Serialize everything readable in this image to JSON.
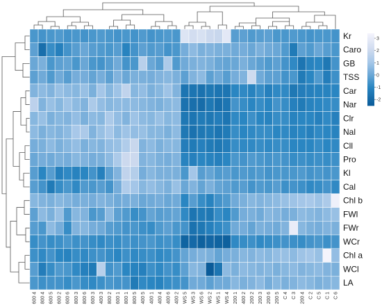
{
  "chart_data": {
    "type": "heatmap",
    "title": "",
    "xlabel": "",
    "ylabel": "",
    "rows": [
      "Kr",
      "Caro",
      "GB",
      "TSS",
      "Car",
      "Nar",
      "Clr",
      "Nal",
      "Cll",
      "Pro",
      "Kl",
      "Cal",
      "Chl b",
      "FWl",
      "FWr",
      "WCr",
      "Chl a",
      "WCl",
      "LA"
    ],
    "columns": [
      "600 4",
      "800 4",
      "600 5",
      "600 2",
      "600 6",
      "800 3",
      "800 6",
      "600 3",
      "400 3",
      "800 2",
      "600 1",
      "800 1",
      "800 5",
      "400 5",
      "400 1",
      "400 4",
      "400 6",
      "400 2",
      "WS 5",
      "WS 3",
      "WS 6",
      "WS 2",
      "WS 1",
      "WS 4",
      "200 1",
      "400 2",
      "200 2",
      "200 3",
      "200 6",
      "200 5",
      "C 4",
      "C 3",
      "200 4",
      "C 2",
      "C 5",
      "C 1",
      "C 6"
    ],
    "color_scale": {
      "stops": [
        {
          "value": -2.5,
          "color": "#0a5b99"
        },
        {
          "value": -1,
          "color": "#2a86c2"
        },
        {
          "value": 0,
          "color": "#6aa7d6"
        },
        {
          "value": 1,
          "color": "#a4c6e8"
        },
        {
          "value": 2,
          "color": "#ccd9ee"
        },
        {
          "value": 3.4,
          "color": "#f4f4fc"
        }
      ],
      "ticks": [
        3,
        2,
        1,
        0,
        -1,
        -2
      ]
    },
    "matrix": [
      [
        -0.5,
        -0.6,
        -0.5,
        -0.4,
        -0.6,
        -0.5,
        -0.6,
        -0.5,
        -0.4,
        -0.5,
        -0.6,
        -0.5,
        -0.6,
        -0.4,
        -0.6,
        -0.5,
        -0.4,
        -0.5,
        2.6,
        2.2,
        2.4,
        2.0,
        1.9,
        2.8,
        -0.3,
        -0.2,
        -0.4,
        -0.3,
        -0.2,
        -0.5,
        -0.5,
        -0.4,
        -0.5,
        -0.6,
        -0.5,
        -0.5,
        -0.6
      ],
      [
        -0.2,
        -1.8,
        -0.8,
        -1.2,
        -0.6,
        -0.3,
        0.0,
        -0.3,
        -0.4,
        -0.5,
        -0.3,
        -1.1,
        -0.6,
        -0.2,
        -0.4,
        -0.3,
        -0.6,
        -0.5,
        0.2,
        0.6,
        0.3,
        0.4,
        0.3,
        0.3,
        0.1,
        0.2,
        0.0,
        0.3,
        0.1,
        0.0,
        -0.4,
        -1.4,
        -0.2,
        -0.4,
        0.0,
        -0.3,
        -0.5
      ],
      [
        0.0,
        0.3,
        -0.5,
        -0.2,
        -0.1,
        -0.5,
        0.0,
        -0.5,
        -0.6,
        -0.3,
        0.1,
        -0.6,
        -0.5,
        1.5,
        0.0,
        -0.3,
        1.2,
        -0.4,
        0.1,
        0.3,
        0.4,
        0.3,
        0.0,
        -0.1,
        0.0,
        0.3,
        0.0,
        -0.2,
        -0.4,
        -0.2,
        -0.6,
        -0.9,
        -1.6,
        -1.1,
        -1.0,
        -1.5,
        -0.6
      ],
      [
        -0.2,
        0.1,
        -0.4,
        0.1,
        -0.3,
        0.2,
        0.2,
        -0.1,
        0.2,
        -0.2,
        0.4,
        0.0,
        0.3,
        0.3,
        0.2,
        0.4,
        0.5,
        0.3,
        -0.2,
        0.4,
        0.6,
        -0.2,
        0.1,
        -0.3,
        0.2,
        0.4,
        2.1,
        0.1,
        -0.2,
        -0.2,
        -0.6,
        -0.5,
        -1.4,
        -1.0,
        -0.4,
        -1.3,
        -0.7
      ],
      [
        0.4,
        0.6,
        0.4,
        0.8,
        0.6,
        0.5,
        0.8,
        0.3,
        1.0,
        0.5,
        0.9,
        1.7,
        0.5,
        0.7,
        0.3,
        0.5,
        0.9,
        0.4,
        -1.6,
        -1.6,
        -1.7,
        -1.5,
        -1.6,
        -1.6,
        -1.0,
        -0.9,
        -1.1,
        -0.8,
        -1.2,
        -0.9,
        -0.9,
        -1.5,
        -1.3,
        -1.2,
        -1.1,
        -1.1,
        -1.0
      ],
      [
        1.6,
        0.4,
        0.8,
        0.5,
        0.9,
        0.6,
        0.4,
        1.2,
        0.7,
        0.5,
        0.6,
        0.6,
        0.6,
        0.5,
        0.4,
        0.3,
        0.5,
        0.6,
        -1.7,
        -1.8,
        -1.9,
        -1.5,
        -1.8,
        -1.6,
        -0.6,
        -0.8,
        -1.0,
        -0.8,
        -1.0,
        -0.6,
        -0.8,
        -1.2,
        -1.4,
        -1.1,
        -1.0,
        -0.9,
        -0.8
      ],
      [
        0.5,
        0.8,
        0.3,
        0.5,
        0.4,
        0.7,
        0.3,
        0.6,
        0.5,
        1.2,
        0.7,
        0.4,
        0.9,
        0.6,
        0.5,
        0.8,
        0.5,
        0.6,
        -1.5,
        -1.6,
        -1.4,
        -1.5,
        -1.3,
        -1.6,
        -0.9,
        -1.0,
        -0.7,
        -1.0,
        -1.1,
        -0.8,
        -0.8,
        -1.1,
        -1.0,
        -1.0,
        -1.2,
        -0.9,
        -1.2
      ],
      [
        0.6,
        0.3,
        0.5,
        0.4,
        0.6,
        1.1,
        1.2,
        0.4,
        0.8,
        1.1,
        0.6,
        0.9,
        0.7,
        0.8,
        0.5,
        0.5,
        0.3,
        0.6,
        -1.5,
        -1.7,
        -1.5,
        -1.4,
        -1.6,
        -1.4,
        -0.8,
        -1.0,
        -0.9,
        -0.8,
        -0.8,
        -1.0,
        -0.9,
        -1.1,
        -1.0,
        -1.2,
        -0.9,
        -1.0,
        -1.1
      ],
      [
        0.2,
        0.3,
        0.6,
        0.3,
        0.5,
        0.7,
        0.3,
        0.5,
        0.4,
        0.7,
        0.8,
        1.3,
        1.9,
        0.4,
        0.6,
        0.3,
        0.5,
        0.5,
        -1.3,
        -1.4,
        -1.2,
        -1.4,
        -1.5,
        -1.3,
        -0.8,
        -0.9,
        -0.9,
        -0.8,
        -0.9,
        -0.8,
        -0.8,
        -1.0,
        -1.0,
        -1.0,
        -0.8,
        -1.0,
        -0.9
      ],
      [
        0.0,
        0.2,
        0.1,
        0.3,
        0.2,
        0.5,
        0.4,
        0.2,
        0.3,
        0.6,
        1.2,
        2.0,
        2.0,
        0.4,
        0.5,
        0.3,
        0.2,
        0.4,
        -1.1,
        -1.2,
        -1.0,
        -1.1,
        -1.2,
        -1.0,
        -0.5,
        -0.6,
        -0.4,
        -0.5,
        -0.6,
        -0.5,
        -0.6,
        -0.8,
        -0.7,
        -0.8,
        -0.7,
        -0.8,
        -0.7
      ],
      [
        -0.3,
        -1.0,
        -0.3,
        -1.2,
        -0.9,
        -1.1,
        -1.0,
        -0.6,
        -1.2,
        -0.2,
        0.4,
        1.7,
        1.4,
        0.2,
        0.5,
        0.3,
        0.3,
        0.3,
        -0.5,
        1.0,
        -0.3,
        -0.1,
        -0.4,
        -0.3,
        -0.5,
        -0.4,
        -0.5,
        -0.4,
        -0.6,
        -0.5,
        -0.5,
        -0.5,
        -0.4,
        -0.6,
        -0.5,
        -0.6,
        -0.5
      ],
      [
        -0.3,
        -0.6,
        -1.4,
        -0.8,
        -0.5,
        -0.9,
        -0.4,
        -0.5,
        -0.3,
        -0.6,
        0.2,
        1.3,
        1.0,
        0.5,
        0.7,
        0.5,
        0.3,
        0.8,
        0.0,
        0.4,
        -0.1,
        0.3,
        -0.1,
        -0.2,
        -0.4,
        -0.3,
        -0.6,
        -0.4,
        -0.5,
        -0.3,
        -0.7,
        -0.6,
        -0.7,
        -0.9,
        -0.8,
        -0.6,
        -0.9
      ],
      [
        0.5,
        0.4,
        0.3,
        0.5,
        0.4,
        0.2,
        0.3,
        0.2,
        0.4,
        0.3,
        0.1,
        0.2,
        0.3,
        0.0,
        0.1,
        0.2,
        0.0,
        0.1,
        -1.0,
        -0.3,
        -0.8,
        -1.1,
        -0.6,
        -0.4,
        0.1,
        0.3,
        0.5,
        0.4,
        0.5,
        0.6,
        0.8,
        0.9,
        1.0,
        1.1,
        0.9,
        1.2,
        3.2
      ],
      [
        -0.2,
        0.6,
        0.3,
        0.8,
        -0.4,
        0.5,
        0.4,
        -0.5,
        -0.3,
        0.6,
        -0.2,
        -0.4,
        -0.8,
        -0.6,
        -0.1,
        -0.3,
        -0.2,
        -0.1,
        -0.9,
        -1.6,
        -1.4,
        -1.5,
        -0.8,
        -1.0,
        -0.4,
        0.2,
        0.3,
        0.1,
        0.5,
        0.4,
        0.2,
        0.3,
        0.6,
        0.5,
        0.4,
        0.6,
        0.8
      ],
      [
        -0.3,
        -0.5,
        0.6,
        0.2,
        -0.8,
        0.4,
        0.5,
        0.2,
        0.1,
        -0.3,
        -0.4,
        -0.6,
        -0.5,
        -0.7,
        -0.8,
        -0.4,
        -0.2,
        -0.5,
        -0.6,
        -1.7,
        -1.5,
        -1.2,
        -0.9,
        -0.7,
        0.1,
        0.2,
        -0.1,
        0.3,
        0.2,
        0.1,
        0.4,
        3.0,
        0.5,
        0.3,
        0.2,
        0.4,
        0.3
      ],
      [
        -0.8,
        -0.6,
        -0.8,
        -0.7,
        -0.5,
        -0.7,
        -0.6,
        -0.8,
        -0.9,
        -0.7,
        -0.8,
        -0.6,
        -0.7,
        -0.6,
        -0.5,
        -0.7,
        -0.6,
        -0.8,
        -2.2,
        -2.0,
        -2.3,
        -2.1,
        -2.2,
        -2.3,
        -0.9,
        -0.8,
        -0.7,
        -0.9,
        -0.8,
        -0.7,
        -0.6,
        -0.7,
        -0.8,
        -0.6,
        -0.5,
        -0.7,
        -0.6
      ],
      [
        -0.7,
        -0.9,
        -0.6,
        -1.0,
        -1.1,
        -0.8,
        -0.9,
        -0.7,
        -0.6,
        -0.8,
        -1.0,
        -0.7,
        -0.9,
        -0.8,
        -0.7,
        -0.9,
        -0.8,
        -0.6,
        -0.1,
        0.2,
        0.4,
        0.3,
        -0.1,
        0.2,
        0.3,
        0.5,
        0.4,
        0.6,
        0.5,
        0.7,
        0.8,
        0.6,
        0.9,
        1.0,
        0.8,
        3.4,
        0.7
      ],
      [
        -0.3,
        -1.3,
        -0.8,
        -0.4,
        -0.5,
        -0.9,
        -1.2,
        -1.4,
        1.5,
        -0.6,
        -0.4,
        -1.0,
        -1.1,
        -1.2,
        -0.7,
        -0.9,
        -0.6,
        -0.8,
        -0.2,
        0.5,
        0.4,
        -2.8,
        -1.6,
        0.6,
        0.3,
        0.6,
        0.5,
        0.4,
        0.5,
        0.3,
        0.5,
        0.6,
        0.4,
        0.5,
        0.6,
        0.4,
        0.3
      ],
      [
        -0.5,
        -0.7,
        -0.6,
        -0.6,
        -0.8,
        -0.5,
        -0.8,
        -0.9,
        -0.7,
        -0.5,
        -0.6,
        -0.6,
        -1.4,
        -0.9,
        -1.0,
        -1.1,
        -0.8,
        -0.7,
        -0.6,
        0.1,
        0.1,
        -0.2,
        0.1,
        0.1,
        0.5,
        0.3,
        0.4,
        0.6,
        0.2,
        0.5,
        0.3,
        0.4,
        0.6,
        0.5,
        0.3,
        0.4,
        0.5
      ]
    ]
  }
}
